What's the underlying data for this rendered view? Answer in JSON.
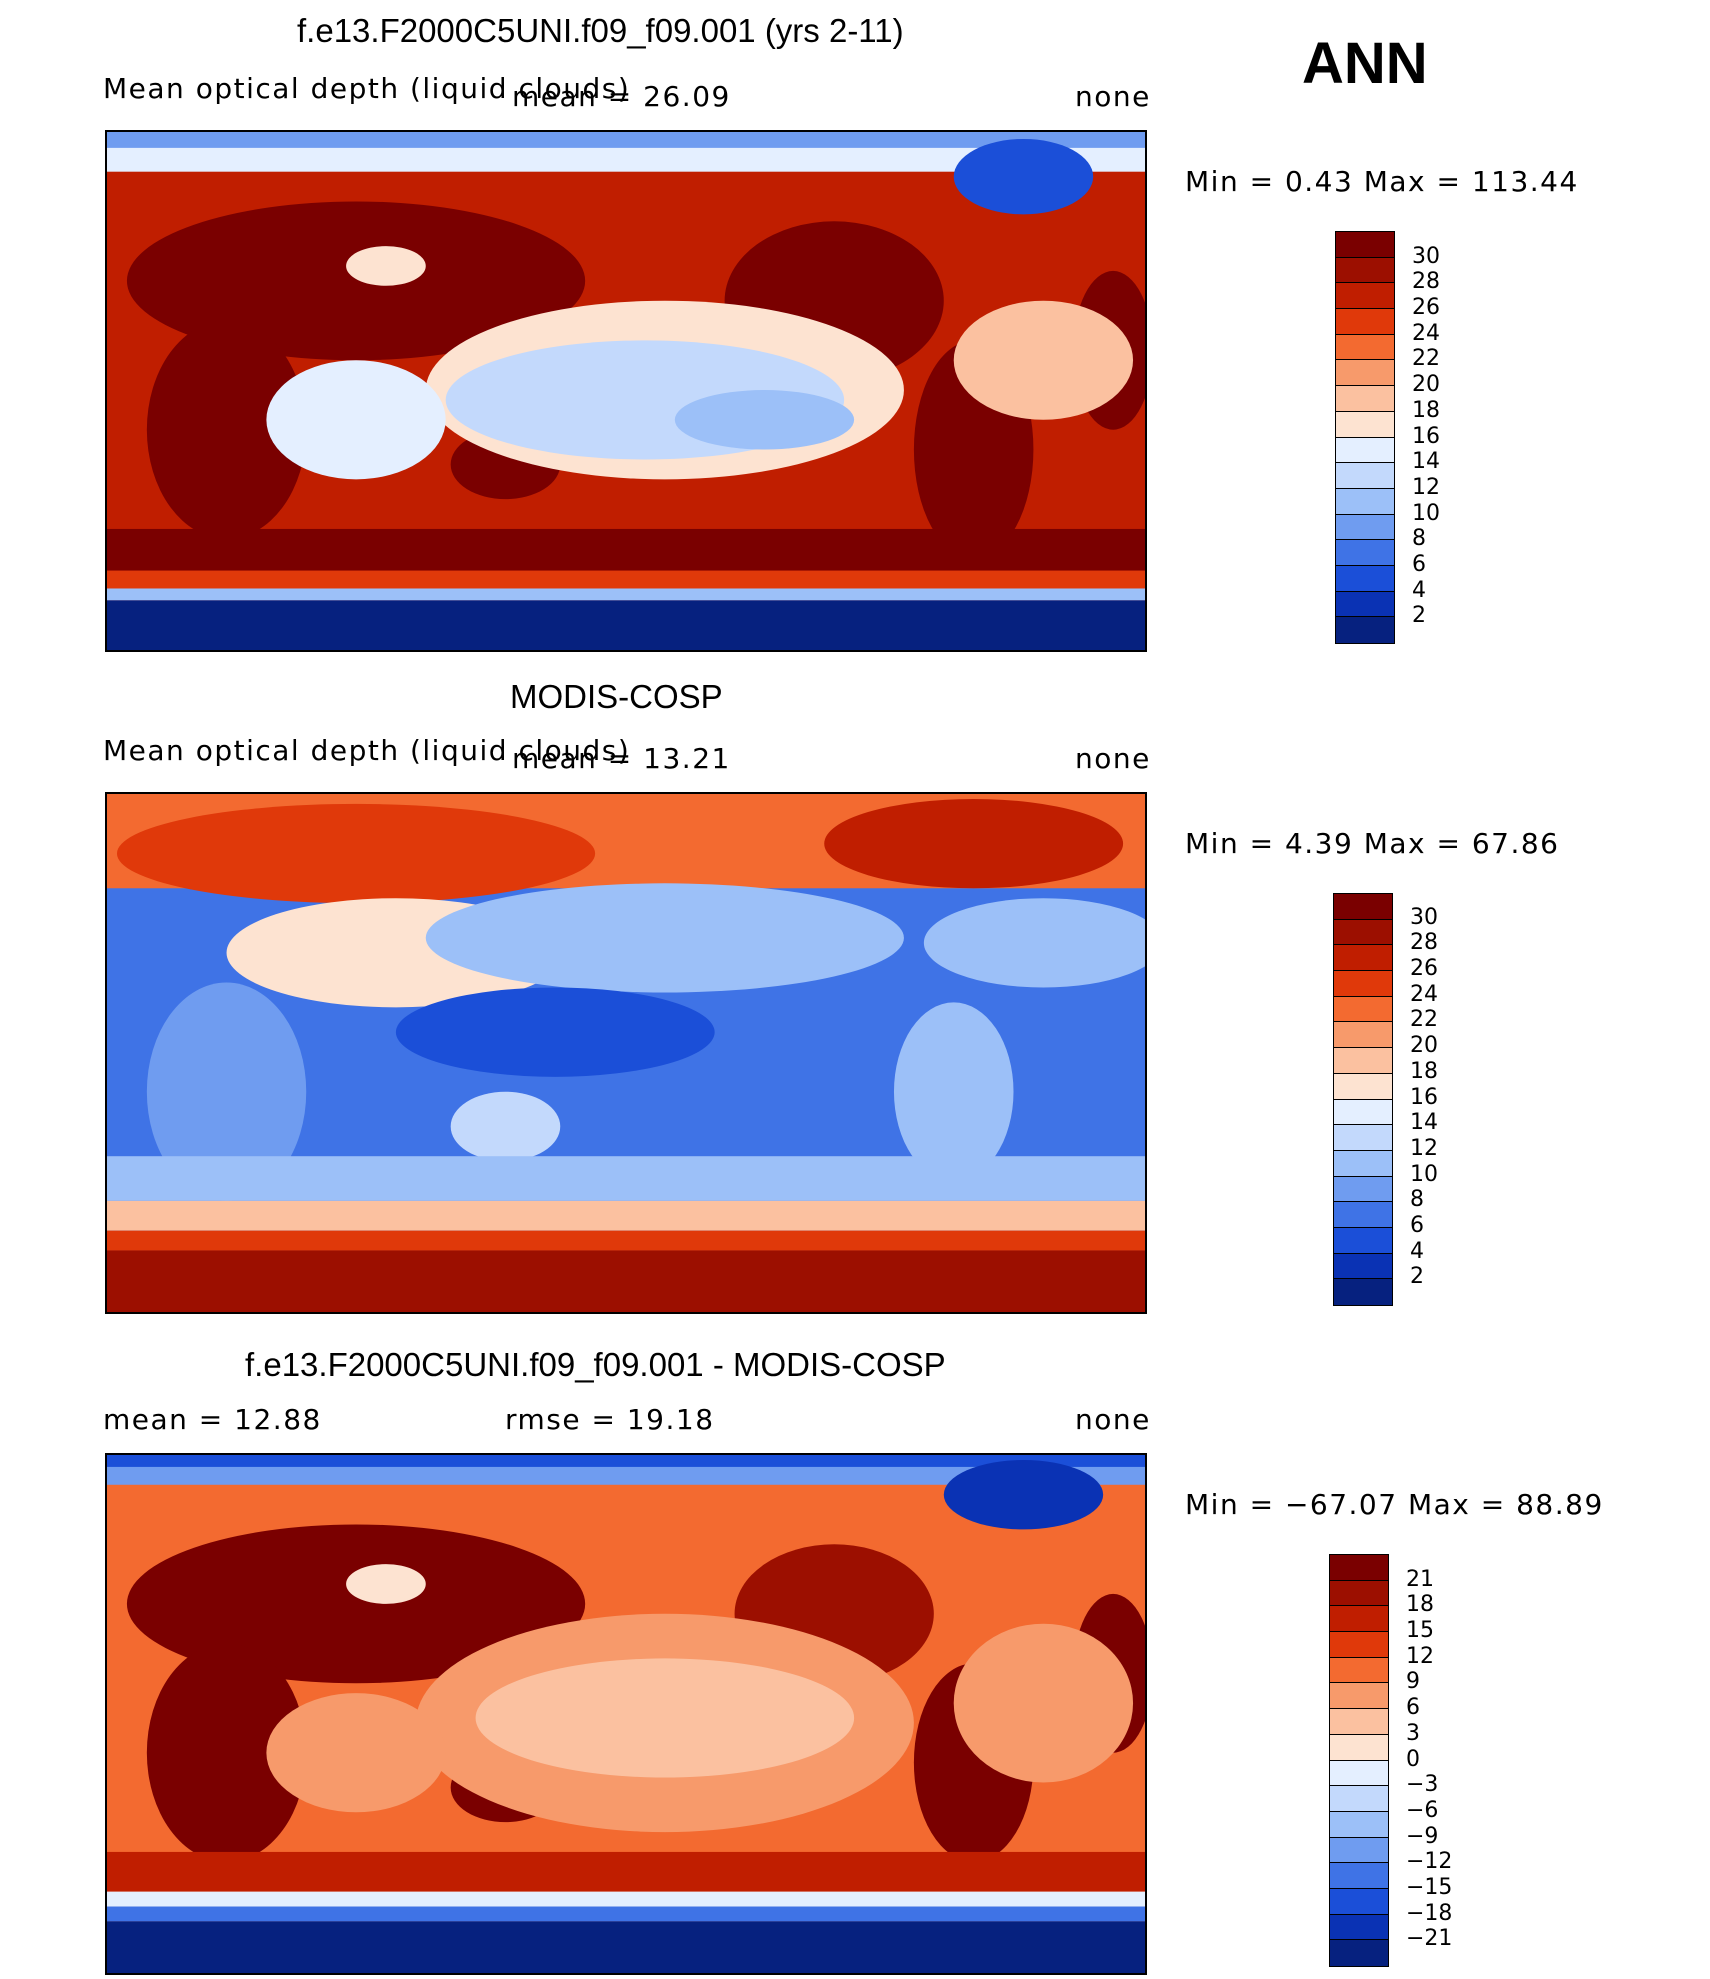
{
  "season": "ANN",
  "palette": {
    "top": [
      "#7a0000",
      "#9c0f00",
      "#c01e00",
      "#e0390a",
      "#f36a30",
      "#f79a6b",
      "#fbc1a0",
      "#fde3d1",
      "#e4efff",
      "#c3d9fc",
      "#9cc0f8",
      "#6f9cf0",
      "#3f73e6",
      "#1b4fd8",
      "#0a32b4",
      "#06217f"
    ],
    "diff": [
      "#7a0000",
      "#9c0f00",
      "#c01e00",
      "#e0390a",
      "#f36a30",
      "#f79a6b",
      "#fbc1a0",
      "#fde3d1",
      "#e4efff",
      "#c3d9fc",
      "#9cc0f8",
      "#6f9cf0",
      "#3f73e6",
      "#1b4fd8",
      "#0a32b4",
      "#06217f"
    ]
  },
  "panels": [
    {
      "title": "f.e13.F2000C5UNI.f09_f09.001 (yrs 2-11)",
      "left_label": "Mean optical depth (liquid clouds)",
      "center_label": "mean =   26.09",
      "right_label": "none",
      "minmax": "Min =    0.43 Max =  113.44",
      "colorbar_ticks": [
        "30",
        "28",
        "26",
        "24",
        "22",
        "20",
        "18",
        "16",
        "14",
        "12",
        "10",
        "8",
        "6",
        "4",
        "2"
      ]
    },
    {
      "title": "MODIS-COSP",
      "left_label": "Mean optical depth (liquid clouds)",
      "center_label": "mean =   13.21",
      "right_label": "none",
      "minmax": "Min =    4.39 Max =   67.86",
      "colorbar_ticks": [
        "30",
        "28",
        "26",
        "24",
        "22",
        "20",
        "18",
        "16",
        "14",
        "12",
        "10",
        "8",
        "6",
        "4",
        "2"
      ]
    },
    {
      "title": "f.e13.F2000C5UNI.f09_f09.001 - MODIS-COSP",
      "left_label": "mean =   12.88",
      "center_label": "rmse =   19.18",
      "right_label": "none",
      "minmax": "Min = −67.07 Max =   88.89",
      "colorbar_ticks": [
        "21",
        "18",
        "15",
        "12",
        "9",
        "6",
        "3",
        "0",
        "−3",
        "−6",
        "−9",
        "−12",
        "−15",
        "−18",
        "−21"
      ]
    }
  ]
}
